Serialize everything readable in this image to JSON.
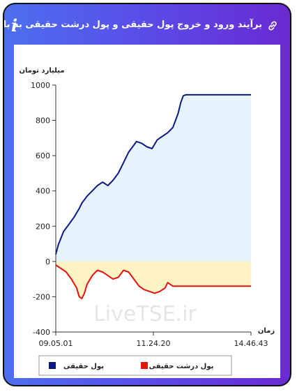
{
  "header": {
    "title": "برآیند ورود و خروج پول حقیقی و پول درشت حقیقی به بازار",
    "link_icon": "link-icon",
    "info_icon": "info-icon",
    "info_glyph": "i"
  },
  "watermark": "LiveTSE.ir",
  "colors": {
    "header_start": "#4d6ff0",
    "header_end": "#6a2ad2",
    "positive_fill": "#e6f2fc",
    "negative_fill": "#fdf3c4",
    "series_real": "#0a1a80",
    "series_big": "#e8120c"
  },
  "chart_data": {
    "type": "line",
    "ylabel": "میلیارد تومان",
    "xlabel": "زمان",
    "ylim": [
      -400,
      1000
    ],
    "yticks": [
      -400,
      -200,
      0,
      200,
      400,
      600,
      800,
      1000
    ],
    "x_tick_labels": [
      "09.05.01",
      "11.24.20",
      "14.46.43"
    ],
    "grid": false,
    "legend_position": "bottom",
    "series": [
      {
        "name": "پول حقیقی",
        "color": "#0a1a80",
        "points": [
          [
            0,
            40
          ],
          [
            1,
            95
          ],
          [
            3,
            170
          ],
          [
            5,
            210
          ],
          [
            7,
            250
          ],
          [
            9,
            300
          ],
          [
            10,
            330
          ],
          [
            12,
            370
          ],
          [
            14,
            400
          ],
          [
            16,
            430
          ],
          [
            18,
            450
          ],
          [
            20,
            430
          ],
          [
            22,
            460
          ],
          [
            24,
            500
          ],
          [
            26,
            560
          ],
          [
            28,
            620
          ],
          [
            30,
            660
          ],
          [
            31,
            680
          ],
          [
            33,
            670
          ],
          [
            35,
            650
          ],
          [
            37,
            640
          ],
          [
            39,
            690
          ],
          [
            41,
            710
          ],
          [
            43,
            730
          ],
          [
            45,
            760
          ],
          [
            47,
            840
          ],
          [
            48,
            900
          ],
          [
            49,
            940
          ],
          [
            50,
            945
          ],
          [
            60,
            945
          ],
          [
            70,
            945
          ],
          [
            75,
            945
          ]
        ]
      },
      {
        "name": "پول درشت حقیقی",
        "color": "#e8120c",
        "points": [
          [
            0,
            -20
          ],
          [
            2,
            -40
          ],
          [
            4,
            -60
          ],
          [
            6,
            -100
          ],
          [
            8,
            -150
          ],
          [
            9,
            -200
          ],
          [
            10,
            -210
          ],
          [
            11,
            -180
          ],
          [
            12,
            -130
          ],
          [
            14,
            -80
          ],
          [
            16,
            -50
          ],
          [
            18,
            -60
          ],
          [
            20,
            -80
          ],
          [
            22,
            -100
          ],
          [
            24,
            -90
          ],
          [
            26,
            -50
          ],
          [
            28,
            -60
          ],
          [
            30,
            -100
          ],
          [
            32,
            -140
          ],
          [
            34,
            -160
          ],
          [
            36,
            -170
          ],
          [
            38,
            -180
          ],
          [
            40,
            -170
          ],
          [
            42,
            -150
          ],
          [
            43,
            -120
          ],
          [
            45,
            -140
          ],
          [
            50,
            -140
          ],
          [
            60,
            -140
          ],
          [
            75,
            -140
          ]
        ]
      }
    ]
  }
}
